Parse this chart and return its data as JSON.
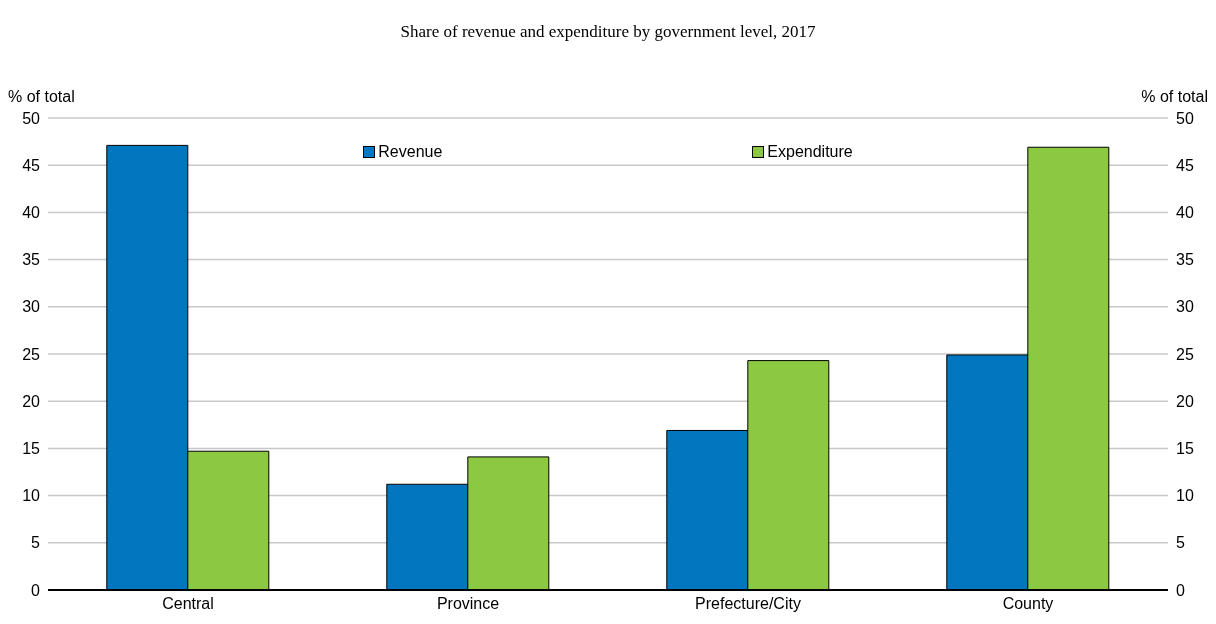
{
  "chart_data": {
    "type": "bar",
    "title": "Share of revenue and expenditure by government level, 2017",
    "ylabel": "% of total",
    "y2label": "% of total",
    "categories": [
      "Central",
      "Province",
      "Prefecture/City",
      "County"
    ],
    "series": [
      {
        "name": "Revenue",
        "color": "#0277bf",
        "values": [
          47.1,
          11.2,
          16.9,
          24.9
        ]
      },
      {
        "name": "Expenditure",
        "color": "#8cc841",
        "values": [
          14.7,
          14.1,
          24.3,
          46.9
        ]
      }
    ],
    "ylim": [
      0,
      50
    ],
    "yticks": [
      0,
      5,
      10,
      15,
      20,
      25,
      30,
      35,
      40,
      45,
      50
    ],
    "y2lim": [
      0,
      50
    ],
    "y2ticks": [
      0,
      5,
      10,
      15,
      20,
      25,
      30,
      35,
      40,
      45,
      50
    ],
    "grid": "y",
    "legend": "top"
  }
}
